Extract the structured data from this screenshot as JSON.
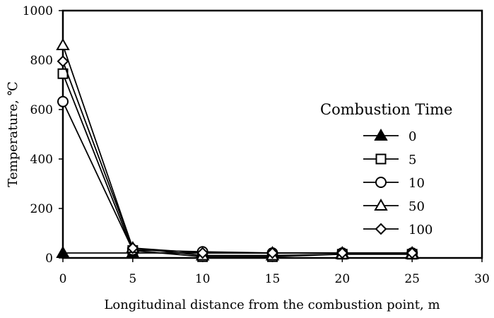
{
  "chart_data": {
    "type": "line",
    "xlabel": "Longitudinal distance from the combustion point, m",
    "ylabel": "Temperature, ℃",
    "xlim": [
      0,
      30
    ],
    "ylim": [
      0,
      1000
    ],
    "xticks": [
      "0",
      "5",
      "10",
      "15",
      "20",
      "25",
      "30"
    ],
    "yticks": [
      "0",
      "200",
      "400",
      "600",
      "800",
      "1000"
    ],
    "grid": false,
    "legend_position": "right",
    "legend_title": "Combustion Time",
    "x": [
      0,
      5,
      10,
      15,
      20,
      25
    ],
    "series": [
      {
        "name": "0",
        "marker": "triangle-filled",
        "values": [
          20,
          20,
          20,
          20,
          20,
          20
        ]
      },
      {
        "name": "5",
        "marker": "square",
        "values": [
          745,
          30,
          5,
          5,
          15,
          15
        ]
      },
      {
        "name": "10",
        "marker": "circle",
        "values": [
          632,
          32,
          25,
          20,
          20,
          20
        ]
      },
      {
        "name": "50",
        "marker": "triangle",
        "values": [
          860,
          40,
          10,
          10,
          15,
          15
        ]
      },
      {
        "name": "100",
        "marker": "diamond",
        "values": [
          795,
          40,
          20,
          20,
          20,
          20
        ]
      }
    ],
    "line_color": "#000000"
  }
}
